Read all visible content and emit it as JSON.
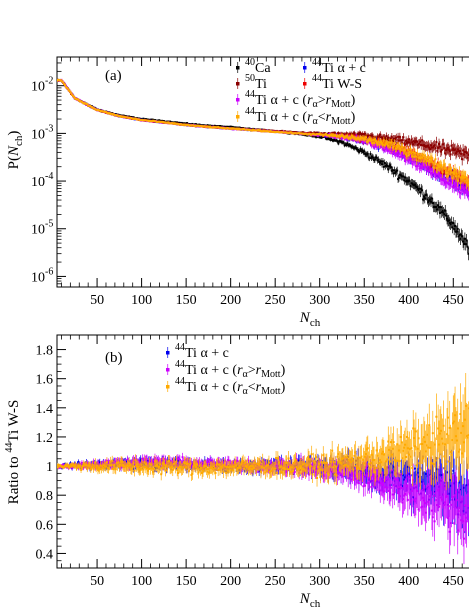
{
  "chart_data": [
    {
      "type": "scatter",
      "panel_label": "(a)",
      "ylabel": "P(N_ch)",
      "xlabel": "N_ch",
      "yscale": "log",
      "xlim": [
        5,
        480
      ],
      "ylim": [
        6e-07,
        0.04
      ],
      "x_ticks": [
        50,
        100,
        150,
        200,
        250,
        300,
        350,
        400,
        450
      ],
      "y_ticks": [
        {
          "value": 1e-06,
          "label": "10",
          "exp": "-6"
        },
        {
          "value": 1e-05,
          "label": "10",
          "exp": "-5"
        },
        {
          "value": 0.0001,
          "label": "10",
          "exp": "-4"
        },
        {
          "value": 0.001,
          "label": "10",
          "exp": "-3"
        },
        {
          "value": 0.01,
          "label": "10",
          "exp": "-2"
        }
      ],
      "x": [
        10,
        25,
        50,
        75,
        100,
        125,
        150,
        175,
        200,
        225,
        250,
        275,
        300,
        325,
        350,
        375,
        400,
        425,
        450,
        465,
        478
      ],
      "series": [
        {
          "name": "40Ca",
          "color": "#000000",
          "values": [
            0.013,
            0.0055,
            0.0032,
            0.0024,
            0.002,
            0.0018,
            0.0016,
            0.00145,
            0.00135,
            0.00122,
            0.0011,
            0.00098,
            0.00085,
            0.00065,
            0.0004,
            0.00021,
            0.0001,
            4e-05,
            1.2e-05,
            4.5e-06,
            1.2e-06
          ]
        },
        {
          "name": "50Ti",
          "color": "#8b0000",
          "values": [
            0.013,
            0.0055,
            0.0031,
            0.0023,
            0.0019,
            0.0017,
            0.0015,
            0.00138,
            0.00128,
            0.0012,
            0.00112,
            0.00105,
            0.001,
            0.00095,
            0.0009,
            0.00078,
            0.00066,
            0.00054,
            0.00042,
            0.00035,
            0.00029
          ]
        },
        {
          "name": "44Ti α + c",
          "color": "#0000ee",
          "values": [
            0.013,
            0.0055,
            0.0031,
            0.0023,
            0.0019,
            0.0017,
            0.0015,
            0.00137,
            0.00126,
            0.00117,
            0.00108,
            0.001,
            0.00094,
            0.00086,
            0.00072,
            0.00052,
            0.00034,
            0.00019,
            0.0001,
            7e-05,
            4.5e-05
          ]
        },
        {
          "name": "44Ti W-S",
          "color": "#ee0000",
          "values": [
            0.013,
            0.0055,
            0.0031,
            0.0023,
            0.0019,
            0.0017,
            0.0015,
            0.00137,
            0.00126,
            0.00117,
            0.00108,
            0.001,
            0.00094,
            0.00087,
            0.00075,
            0.00058,
            0.0004,
            0.00024,
            0.000135,
            9.5e-05,
            6.5e-05
          ]
        },
        {
          "name": "44Ti α + c (rα>rMott)",
          "color": "#cc00ff",
          "values": [
            0.013,
            0.0055,
            0.0031,
            0.0023,
            0.0019,
            0.0017,
            0.0015,
            0.00137,
            0.00126,
            0.00117,
            0.00108,
            0.001,
            0.00094,
            0.00085,
            0.0007,
            0.0005,
            0.0003,
            0.00016,
            8.5e-05,
            6e-05,
            4e-05
          ]
        },
        {
          "name": "44Ti α + c (rα<rMott)",
          "color": "#ffaa00",
          "values": [
            0.013,
            0.0055,
            0.0031,
            0.0023,
            0.0019,
            0.0017,
            0.0015,
            0.00137,
            0.00126,
            0.00117,
            0.00108,
            0.001,
            0.00094,
            0.00087,
            0.00076,
            0.0006,
            0.00042,
            0.00026,
            0.00015,
            0.00011,
            7.5e-05
          ]
        }
      ],
      "legend": {
        "col1": [
          {
            "series": 0,
            "sup": "40",
            "text": "Ca"
          },
          {
            "series": 1,
            "sup": "50",
            "text": "Ti"
          }
        ],
        "col2": [
          {
            "series": 2,
            "sup": "44",
            "text": "Ti α + c"
          },
          {
            "series": 3,
            "sup": "44",
            "text": "Ti W-S"
          }
        ],
        "wide": [
          {
            "series": 4,
            "sup": "44",
            "text": "Ti α + c (",
            "r_sub": "α",
            "rel": ">",
            "r2_sub": "Mott",
            "close": ")"
          },
          {
            "series": 5,
            "sup": "44",
            "text": "Ti α + c (",
            "r_sub": "α",
            "rel": "<",
            "r2_sub": "Mott",
            "close": ")"
          }
        ]
      }
    },
    {
      "type": "scatter",
      "panel_label": "(b)",
      "ylabel_prefix": "Ratio to ",
      "ylabel_sup": "44",
      "ylabel_suffix": "Ti W-S",
      "xlabel": "N_ch",
      "xlim": [
        5,
        480
      ],
      "ylim": [
        0.3,
        1.9
      ],
      "x_ticks": [
        50,
        100,
        150,
        200,
        250,
        300,
        350,
        400,
        450
      ],
      "y_ticks": [
        0.4,
        0.6,
        0.8,
        1,
        1.2,
        1.4,
        1.6,
        1.8
      ],
      "x": [
        10,
        50,
        100,
        150,
        200,
        250,
        300,
        325,
        350,
        375,
        400,
        425,
        450,
        465,
        478
      ],
      "series": [
        {
          "name": "44Ti α + c",
          "color": "#0000ee",
          "values": [
            1.0,
            1.01,
            1.02,
            1.01,
            1.0,
            1.0,
            1.0,
            0.99,
            0.96,
            0.93,
            0.9,
            0.88,
            0.84,
            0.82,
            0.8
          ],
          "spread": [
            0.02,
            0.04,
            0.05,
            0.05,
            0.05,
            0.06,
            0.08,
            0.1,
            0.12,
            0.15,
            0.18,
            0.22,
            0.28,
            0.32,
            0.35
          ]
        },
        {
          "name": "44Ti α + c (rα>rMott)",
          "color": "#cc00ff",
          "values": [
            1.0,
            1.01,
            1.03,
            1.02,
            1.01,
            1.0,
            0.98,
            0.96,
            0.93,
            0.88,
            0.83,
            0.78,
            0.72,
            0.68,
            0.62
          ],
          "spread": [
            0.02,
            0.04,
            0.05,
            0.05,
            0.05,
            0.06,
            0.08,
            0.1,
            0.12,
            0.15,
            0.18,
            0.22,
            0.26,
            0.3,
            0.32
          ]
        },
        {
          "name": "44Ti α + c (rα<rMott)",
          "color": "#ffaa00",
          "values": [
            1.0,
            1.0,
            1.0,
            0.99,
            0.99,
            1.0,
            1.0,
            1.02,
            1.04,
            1.07,
            1.1,
            1.14,
            1.18,
            1.22,
            1.25
          ],
          "spread": [
            0.02,
            0.05,
            0.07,
            0.07,
            0.07,
            0.08,
            0.1,
            0.12,
            0.14,
            0.17,
            0.2,
            0.25,
            0.32,
            0.38,
            0.42
          ]
        }
      ],
      "legend": [
        {
          "series": 0,
          "sup": "44",
          "text": "Ti α + c"
        },
        {
          "series": 1,
          "sup": "44",
          "text": "Ti α + c (",
          "r_sub": "α",
          "rel": ">",
          "r2_sub": "Mott",
          "close": ")"
        },
        {
          "series": 2,
          "sup": "44",
          "text": "Ti α + c (",
          "r_sub": "α",
          "rel": "<",
          "r2_sub": "Mott",
          "close": ")"
        }
      ]
    }
  ]
}
